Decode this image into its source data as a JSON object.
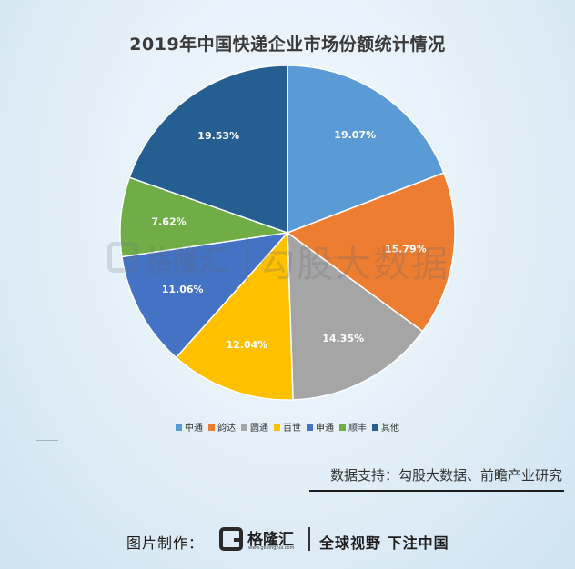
{
  "chart_data": {
    "type": "pie",
    "title": "2019年中国快递企业市场份额统计情况",
    "slices": [
      {
        "label": "中通",
        "value": 19.07,
        "display": "19.07%",
        "color": "#5b9bd5"
      },
      {
        "label": "韵达",
        "value": 15.79,
        "display": "15.79%",
        "color": "#ed7d31"
      },
      {
        "label": "圆通",
        "value": 14.35,
        "display": "14.35%",
        "color": "#a5a5a5"
      },
      {
        "label": "百世",
        "value": 12.04,
        "display": "12.04%",
        "color": "#ffc000"
      },
      {
        "label": "申通",
        "value": 11.06,
        "display": "11.06%",
        "color": "#4472c4"
      },
      {
        "label": "顺丰",
        "value": 7.62,
        "display": "7.62%",
        "color": "#70ad47"
      },
      {
        "label": "其他",
        "value": 19.53,
        "display": "19.53%",
        "color": "#255e91"
      }
    ],
    "legend_position": "bottom",
    "start": "12 o'clock, clockwise"
  },
  "watermark": {
    "brand": "格隆汇",
    "sub": "www.gelonghui.com",
    "text": "勾股大数据"
  },
  "source_text": "数据支持：勾股大数据、前瞻产业研究",
  "footer": {
    "label": "图片制作：",
    "brand": "格隆汇",
    "sub": "www.gelonghui.com",
    "slogan": "全球视野 下注中国"
  }
}
